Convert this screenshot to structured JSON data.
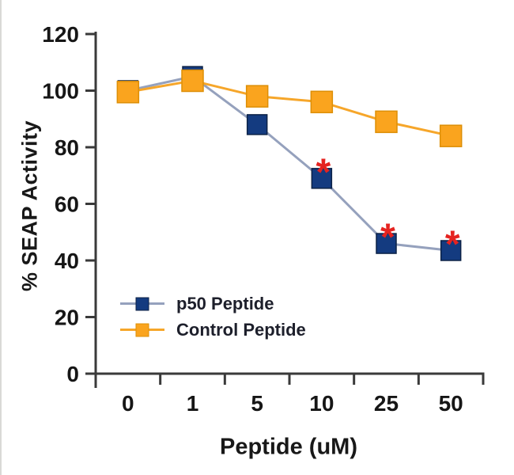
{
  "chart_data": {
    "type": "line",
    "title": "",
    "xlabel": "Peptide (uM)",
    "ylabel": "% SEAP Activity",
    "categories": [
      "0",
      "1",
      "5",
      "10",
      "25",
      "50"
    ],
    "yticks": [
      0,
      20,
      40,
      60,
      80,
      100,
      120
    ],
    "ylim": [
      0,
      120
    ],
    "grid": false,
    "legend_position": "inside-bottom-left",
    "series": [
      {
        "name": "p50 Peptide",
        "values": [
          100,
          105,
          88,
          69,
          46,
          43.5
        ],
        "line_color": "#95a1bd",
        "marker_color": "#143b80",
        "marker_edge": "#0c2246",
        "marker_size": 25
      },
      {
        "name": "Control Peptide",
        "values": [
          99.5,
          103.5,
          98,
          96,
          89,
          84
        ],
        "line_color": "#f6a62a",
        "marker_color": "#faa41e",
        "marker_edge": "#dd8f07",
        "marker_size": 27
      }
    ],
    "annotations": {
      "symbol": "*",
      "color": "#e52320",
      "series_index": 0,
      "point_indices": [
        3,
        4,
        5
      ],
      "meaning": "significance-asterisk"
    },
    "colors": {
      "axis": "#3a3a3a",
      "tick_text": "#161616"
    }
  }
}
